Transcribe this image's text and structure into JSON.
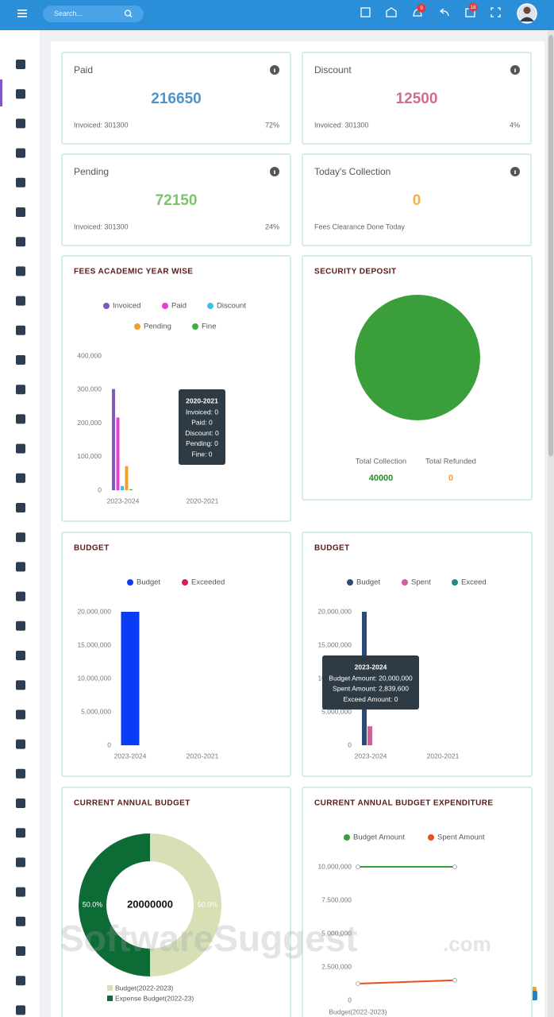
{
  "header": {
    "search_placeholder": "Search...",
    "badges": [
      "9",
      "18"
    ]
  },
  "stats": [
    {
      "title": "Paid",
      "value": 216650,
      "left": "Invoiced: 301300",
      "right": "72%",
      "color": "#4f94c8"
    },
    {
      "title": "Discount",
      "value": 12500,
      "left": "Invoiced: 301300",
      "right": "4%",
      "color": "#d46a93"
    },
    {
      "title": "Pending",
      "value": 72150,
      "left": "Invoiced: 301300",
      "right": "24%",
      "color": "#7cc46a"
    },
    {
      "title": "Today's Collection",
      "value": 0,
      "left": "Fees Clearance Done Today",
      "color": "#f3b447"
    }
  ],
  "fees_chart": {
    "type": "bar",
    "title": "FEES ACADEMIC YEAR WISE",
    "categories": [
      "2023-2024",
      "2020-2021"
    ],
    "series": [
      {
        "name": "Invoiced",
        "color": "#7e57c2",
        "values": [
          301300,
          0
        ]
      },
      {
        "name": "Paid",
        "color": "#e83fcf",
        "values": [
          216650,
          0
        ]
      },
      {
        "name": "Discount",
        "color": "#3fc0e8",
        "values": [
          12500,
          0
        ]
      },
      {
        "name": "Pending",
        "color": "#f0a030",
        "values": [
          72150,
          0
        ]
      },
      {
        "name": "Fine",
        "color": "#3cb043",
        "values": [
          3000,
          0
        ]
      }
    ],
    "ylim": [
      0,
      400000
    ],
    "yticks": [
      0,
      {
        "value": 100000,
        "label": "100,000"
      },
      {
        "value": 200000,
        "label": "200,000"
      },
      {
        "value": 300000,
        "label": "300,000"
      },
      {
        "value": 400000,
        "label": "400,000"
      }
    ],
    "tooltip": {
      "title": "2020-2021",
      "lines": [
        "Invoiced: 0",
        "Paid: 0",
        "Discount: 0",
        "Pending: 0",
        "Fine: 0"
      ]
    }
  },
  "security": {
    "type": "pie",
    "title": "SECURITY DEPOSIT",
    "categories": [
      "Total Collection",
      "Total Refunded"
    ],
    "values": [
      40000,
      0
    ],
    "colors": [
      "#3a9e3a",
      "#f0a030"
    ]
  },
  "budget_chart": {
    "type": "bar",
    "title": "BUDGET",
    "categories": [
      "2023-2024",
      "2020-2021"
    ],
    "series": [
      {
        "name": "Budget",
        "color": "#0a3cf5",
        "values": [
          20000000,
          0
        ]
      },
      {
        "name": "Exceeded",
        "color": "#d81b60",
        "values": [
          0,
          0
        ]
      }
    ],
    "ylim": [
      0,
      20000000
    ],
    "yticks": [
      0,
      {
        "value": 5000000,
        "label": "5,000,000"
      },
      {
        "value": 10000000,
        "label": "10,000,000"
      },
      {
        "value": 15000000,
        "label": "15,000,000"
      },
      {
        "value": 20000000,
        "label": "20,000,000"
      }
    ]
  },
  "budget_spent_chart": {
    "type": "bar",
    "title": "BUDGET",
    "categories": [
      "2023-2024",
      "2020-2021"
    ],
    "series": [
      {
        "name": "Budget",
        "color": "#2c4a7a",
        "values": [
          20000000,
          0
        ]
      },
      {
        "name": "Spent",
        "color": "#d0609a",
        "values": [
          2839600,
          0
        ]
      },
      {
        "name": "Exceed",
        "color": "#1e8f7e",
        "values": [
          0,
          0
        ]
      }
    ],
    "ylim": [
      0,
      20000000
    ],
    "yticks": [
      0,
      {
        "value": 5000000,
        "label": "5,000,000"
      },
      {
        "value": 10000000,
        "label": "10,000,000"
      },
      {
        "value": 15000000,
        "label": "15,000,000"
      },
      {
        "value": 20000000,
        "label": "20,000,000"
      }
    ],
    "tooltip": {
      "title": "2023-2024",
      "lines": [
        "Budget Amount: 20,000,000",
        "Spent Amount: 2,839,600",
        "Exceed Amount: 0"
      ]
    }
  },
  "annual_budget": {
    "type": "pie",
    "title": "CURRENT ANNUAL BUDGET",
    "total": 20000000,
    "categories": [
      "Budget(2022-2023)",
      "Expense Budget(2022-23)"
    ],
    "values": [
      50,
      50
    ],
    "value_labels": [
      "50.0%",
      "50.0%"
    ],
    "colors": [
      "#d6e0b4",
      "#0d6b35"
    ]
  },
  "expenditure": {
    "type": "line",
    "title": "CURRENT ANNUAL BUDGET EXPENDITURE",
    "categories": [
      "Budget(2022-2023)",
      null
    ],
    "series": [
      {
        "name": "Budget Amount",
        "color": "#3aa03a",
        "values": [
          10000000,
          10000000
        ]
      },
      {
        "name": "Spent Amount",
        "color": "#e8501e",
        "values": [
          1250000,
          1500000
        ]
      }
    ],
    "ylim": [
      0,
      10000000
    ],
    "yticks": [
      0,
      {
        "value": 2500000,
        "label": "2,500,000"
      },
      {
        "value": 5000000,
        "label": "5,000,000"
      },
      {
        "value": 7500000,
        "label": "7,500,000"
      },
      {
        "value": 10000000,
        "label": "10,000,000"
      }
    ]
  },
  "watermark": [
    "SoftwareSuggest",
    ".com"
  ]
}
